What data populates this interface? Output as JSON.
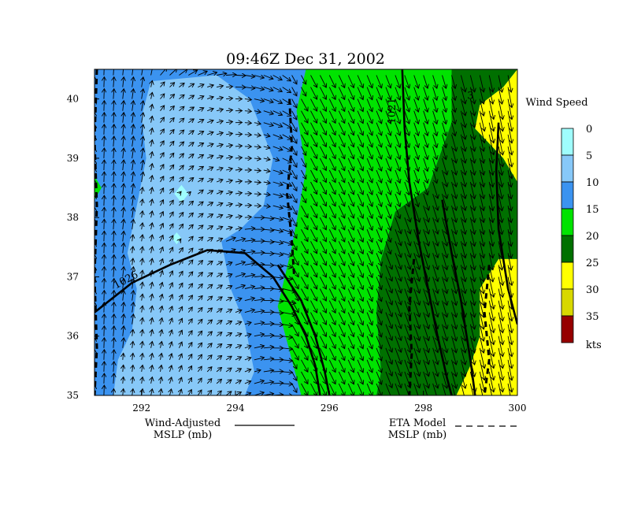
{
  "chart_data": {
    "type": "heatmap",
    "title": "09:46Z Dec 31, 2002",
    "xlim": [
      291,
      300
    ],
    "ylim": [
      35,
      40.5
    ],
    "x_ticks": [
      {
        "v": 292,
        "label": "292"
      },
      {
        "v": 294,
        "label": "294"
      },
      {
        "v": 296,
        "label": "296"
      },
      {
        "v": 298,
        "label": "298"
      },
      {
        "v": 300,
        "label": "300"
      }
    ],
    "y_ticks": [
      {
        "v": 35,
        "label": "35"
      },
      {
        "v": 36,
        "label": "36"
      },
      {
        "v": 37,
        "label": "37"
      },
      {
        "v": 38,
        "label": "38"
      },
      {
        "v": 39,
        "label": "39"
      },
      {
        "v": 40,
        "label": "40"
      }
    ],
    "legend": {
      "title": "Wind Speed",
      "unit": "kts",
      "bins": [
        {
          "label": "0",
          "color": "#9ffdfd"
        },
        {
          "label": "5",
          "color": "#87c8f8"
        },
        {
          "label": "10",
          "color": "#3b93f0"
        },
        {
          "label": "15",
          "color": "#00e300"
        },
        {
          "label": "20",
          "color": "#007000"
        },
        {
          "label": "25",
          "color": "#ffff00"
        },
        {
          "label": "30",
          "color": "#d8d800"
        },
        {
          "label": "35",
          "color": "#960000"
        }
      ]
    },
    "line_legend": [
      {
        "line1": "Wind-Adjusted",
        "line2": "MSLP (mb)",
        "style": "solid"
      },
      {
        "line1": "ETA Model",
        "line2": "MSLP (mb)",
        "style": "dashed"
      }
    ],
    "contour_labels": [
      {
        "text": "1026",
        "x": 291.7,
        "y": 36.9
      },
      {
        "text": "1021",
        "x": 297.4,
        "y": 39.8
      },
      {
        "text": "3",
        "x": 299.0,
        "y": 40.0
      }
    ],
    "regions": [
      {
        "bin": 10,
        "color": "#3b93f0",
        "points": [
          [
            291,
            40.5
          ],
          [
            295.5,
            40.5
          ],
          [
            295.3,
            39.8
          ],
          [
            295.5,
            38.8
          ],
          [
            295.2,
            37.5
          ],
          [
            294.9,
            36.5
          ],
          [
            295.2,
            35.6
          ],
          [
            295.4,
            35
          ]
        ]
      },
      {
        "bin": 15,
        "color": "#00e300",
        "points": [
          [
            295.5,
            40.5
          ],
          [
            298.6,
            40.5
          ],
          [
            298.6,
            39.6
          ],
          [
            298.1,
            38.5
          ],
          [
            297.4,
            38.1
          ],
          [
            297.1,
            37.3
          ],
          [
            297.0,
            36.4
          ],
          [
            297.1,
            35.4
          ],
          [
            297.0,
            35
          ],
          [
            295.4,
            35
          ],
          [
            295.2,
            35.6
          ],
          [
            294.9,
            36.5
          ],
          [
            295.2,
            37.5
          ],
          [
            295.5,
            38.8
          ],
          [
            295.3,
            39.8
          ]
        ]
      },
      {
        "bin": 20,
        "color": "#007000",
        "points": [
          [
            298.6,
            40.5
          ],
          [
            300,
            40.5
          ],
          [
            299.7,
            40.2
          ],
          [
            299.2,
            39.9
          ],
          [
            299.1,
            39.5
          ],
          [
            299.7,
            39.0
          ],
          [
            300,
            38.6
          ],
          [
            300,
            37.3
          ],
          [
            299.6,
            37.3
          ],
          [
            299.2,
            36.8
          ],
          [
            299.2,
            36.0
          ],
          [
            299.0,
            35.5
          ],
          [
            298.7,
            35
          ],
          [
            297.0,
            35
          ],
          [
            297.1,
            35.4
          ],
          [
            297.0,
            36.4
          ],
          [
            297.1,
            37.3
          ],
          [
            297.4,
            38.1
          ],
          [
            298.1,
            38.5
          ],
          [
            298.6,
            39.6
          ]
        ]
      },
      {
        "bin": 25,
        "color": "#ffff00",
        "points": [
          [
            300,
            40.5
          ],
          [
            300,
            38.6
          ],
          [
            299.7,
            39.0
          ],
          [
            299.1,
            39.5
          ],
          [
            299.2,
            39.9
          ],
          [
            299.7,
            40.2
          ]
        ]
      },
      {
        "bin": 25,
        "color": "#ffff00",
        "points": [
          [
            300,
            37.3
          ],
          [
            300,
            35
          ],
          [
            298.7,
            35
          ],
          [
            299.0,
            35.5
          ],
          [
            299.2,
            36.0
          ],
          [
            299.2,
            36.8
          ],
          [
            299.6,
            37.3
          ]
        ]
      },
      {
        "bin": 5,
        "color": "#87c8f8",
        "points": [
          [
            292.2,
            40.3
          ],
          [
            293.6,
            40.4
          ],
          [
            294.3,
            40.0
          ],
          [
            294.8,
            39.0
          ],
          [
            294.6,
            38.2
          ],
          [
            294.1,
            37.8
          ],
          [
            293.7,
            37.6
          ],
          [
            293.9,
            36.8
          ],
          [
            294.2,
            36.2
          ],
          [
            294.4,
            35.4
          ],
          [
            294.2,
            35
          ],
          [
            291.4,
            35
          ],
          [
            291.5,
            35.6
          ],
          [
            291.8,
            36.1
          ],
          [
            291.9,
            36.8
          ],
          [
            291.7,
            37.4
          ],
          [
            291.9,
            38.2
          ],
          [
            292.1,
            39.0
          ],
          [
            292.0,
            39.7
          ]
        ]
      },
      {
        "bin": 0,
        "color": "#9ffdfd",
        "points": [
          [
            292.85,
            38.55
          ],
          [
            293.0,
            38.4
          ],
          [
            292.85,
            38.25
          ],
          [
            292.7,
            38.4
          ]
        ]
      },
      {
        "bin": 0,
        "color": "#9ffdfd",
        "points": [
          [
            292.75,
            37.75
          ],
          [
            292.85,
            37.65
          ],
          [
            292.75,
            37.55
          ],
          [
            292.65,
            37.65
          ]
        ]
      },
      {
        "bin": 15,
        "color": "#00e300",
        "points": [
          [
            291,
            38.7
          ],
          [
            291.15,
            38.5
          ],
          [
            291,
            38.3
          ]
        ]
      }
    ],
    "solid_contours": [
      {
        "label": "1026",
        "points": [
          [
            291,
            36.4
          ],
          [
            291.8,
            36.9
          ],
          [
            292.6,
            37.2
          ],
          [
            293.4,
            37.45
          ],
          [
            294.2,
            37.4
          ],
          [
            294.8,
            37.0
          ],
          [
            295.2,
            36.5
          ],
          [
            295.5,
            36.0
          ],
          [
            295.7,
            35.5
          ],
          [
            295.8,
            35
          ]
        ]
      },
      {
        "label": "",
        "points": [
          [
            294.9,
            37.2
          ],
          [
            295.4,
            36.6
          ],
          [
            295.7,
            36.0
          ],
          [
            295.9,
            35.4
          ],
          [
            296.0,
            35
          ]
        ]
      },
      {
        "label": "1021",
        "points": [
          [
            297.55,
            40.5
          ],
          [
            297.6,
            39.5
          ],
          [
            297.7,
            38.6
          ],
          [
            297.9,
            37.6
          ],
          [
            298.1,
            36.8
          ],
          [
            298.3,
            36.0
          ],
          [
            298.5,
            35.3
          ],
          [
            298.6,
            35
          ]
        ]
      },
      {
        "label": "",
        "points": [
          [
            298.4,
            38.3
          ],
          [
            298.6,
            37.4
          ],
          [
            298.8,
            36.6
          ],
          [
            299.0,
            35.6
          ],
          [
            299.1,
            35
          ]
        ]
      },
      {
        "label": "",
        "points": [
          [
            299.6,
            39.6
          ],
          [
            299.55,
            38.8
          ],
          [
            299.6,
            37.8
          ],
          [
            299.8,
            36.8
          ],
          [
            300,
            36.2
          ]
        ]
      }
    ],
    "dashed_contours": [
      {
        "points": [
          [
            291.05,
            40.5
          ],
          [
            291.0,
            39.3
          ],
          [
            291.05,
            38.2
          ],
          [
            291.0,
            37.0
          ],
          [
            291.05,
            35.8
          ],
          [
            291.0,
            35
          ]
        ]
      },
      {
        "points": [
          [
            295.15,
            40.0
          ],
          [
            295.2,
            39.2
          ],
          [
            295.1,
            38.4
          ],
          [
            295.2,
            37.6
          ],
          [
            295.25,
            37.0
          ]
        ]
      },
      {
        "points": [
          [
            297.8,
            37.3
          ],
          [
            297.7,
            36.5
          ],
          [
            297.75,
            35.7
          ],
          [
            297.7,
            35.0
          ]
        ]
      },
      {
        "points": [
          [
            299.4,
            37.2
          ],
          [
            299.3,
            36.4
          ],
          [
            299.4,
            35.6
          ],
          [
            299.3,
            35.0
          ]
        ]
      }
    ]
  }
}
